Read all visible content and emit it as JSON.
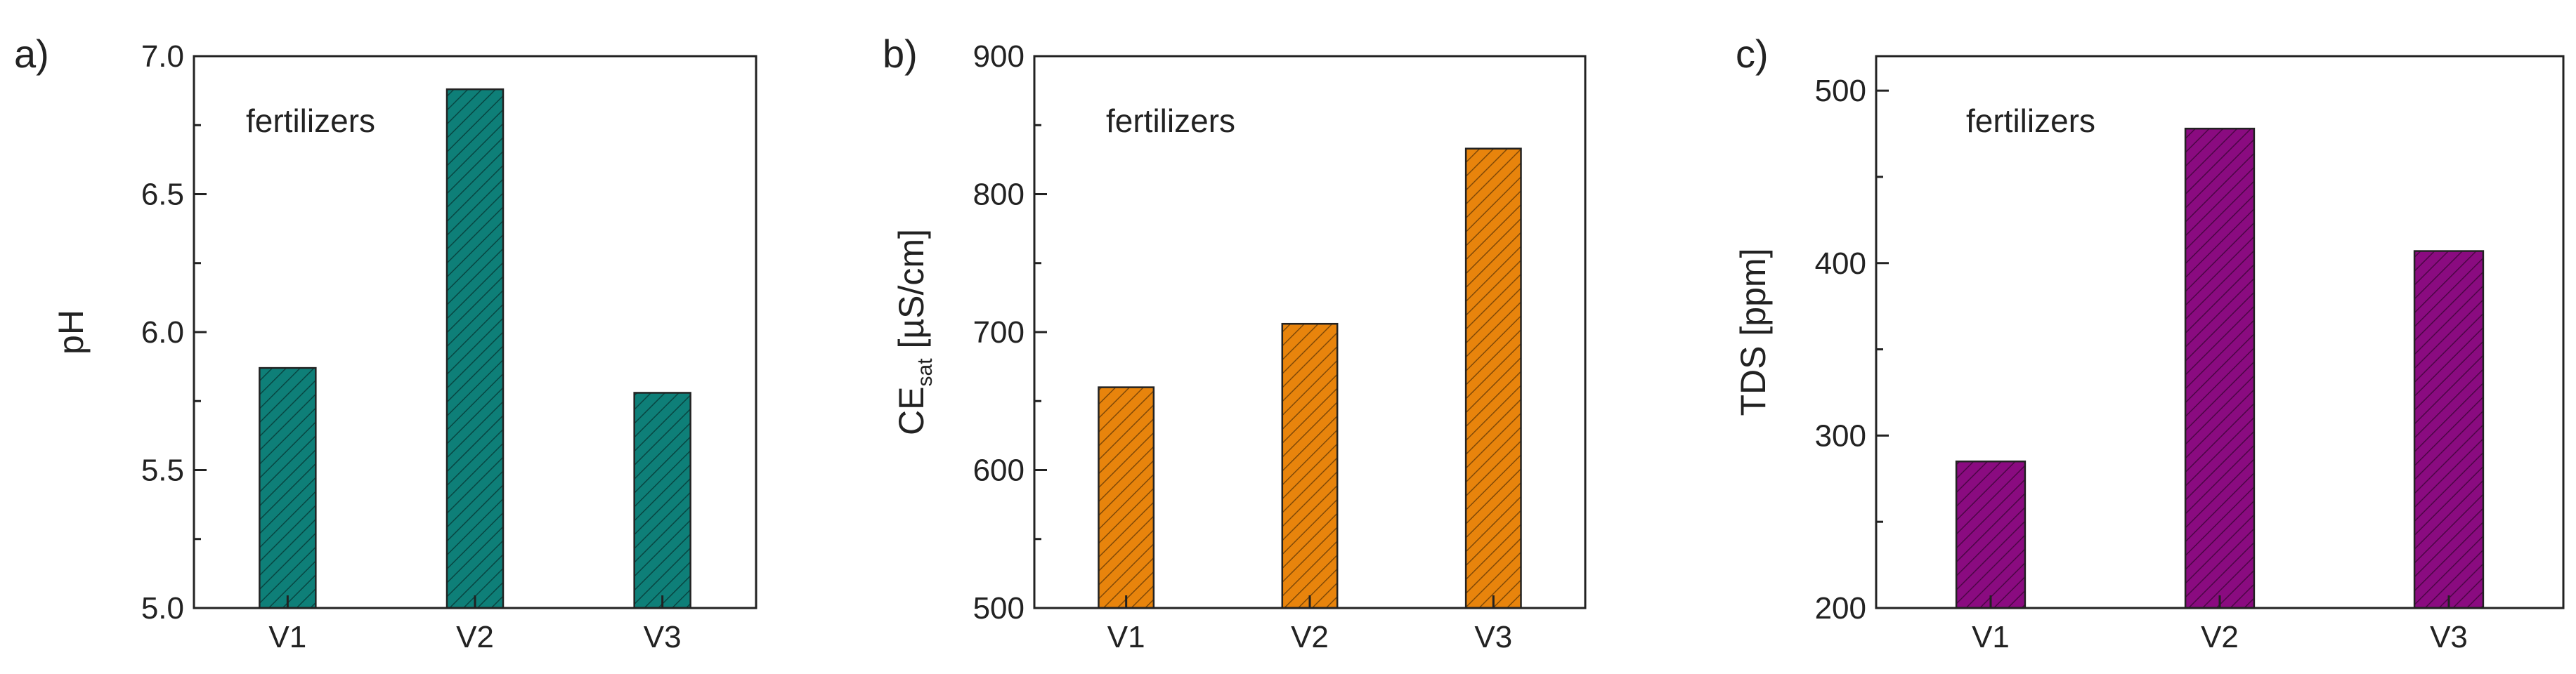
{
  "chart_data": [
    {
      "type": "bar",
      "panel_label": "a)",
      "annotation": "fertilizers",
      "categories": [
        "V1",
        "V2",
        "V3"
      ],
      "values": [
        5.87,
        6.88,
        5.78
      ],
      "ylabel": "pH",
      "ylim": [
        5.0,
        7.0
      ],
      "yticks": [
        5.0,
        5.5,
        6.0,
        6.5,
        7.0
      ],
      "ytick_labels": [
        "5.0",
        "5.5",
        "6.0",
        "6.5",
        "7.0"
      ],
      "color": "#0e7f78",
      "hatch": true,
      "grid": false
    },
    {
      "type": "bar",
      "panel_label": "b)",
      "annotation": "fertilizers",
      "categories": [
        "V1",
        "V2",
        "V3"
      ],
      "values": [
        660,
        706,
        833
      ],
      "ylabel": "CE",
      "ylabel_sub": "sat",
      "ylabel_unit": " [µS/cm]",
      "ylim": [
        500,
        900
      ],
      "yticks": [
        500,
        600,
        700,
        800,
        900
      ],
      "ytick_labels": [
        "500",
        "600",
        "700",
        "800",
        "900"
      ],
      "color": "#e8840c",
      "hatch": true,
      "grid": false
    },
    {
      "type": "bar",
      "panel_label": "c)",
      "annotation": "fertilizers",
      "categories": [
        "V1",
        "V2",
        "V3"
      ],
      "values": [
        285,
        478,
        407
      ],
      "ylabel": "TDS [ppm]",
      "ylim": [
        200,
        520
      ],
      "yticks": [
        200,
        300,
        400,
        500
      ],
      "ytick_labels": [
        "200",
        "300",
        "400",
        "500"
      ],
      "color": "#8a0b80",
      "hatch": true,
      "grid": false
    }
  ]
}
